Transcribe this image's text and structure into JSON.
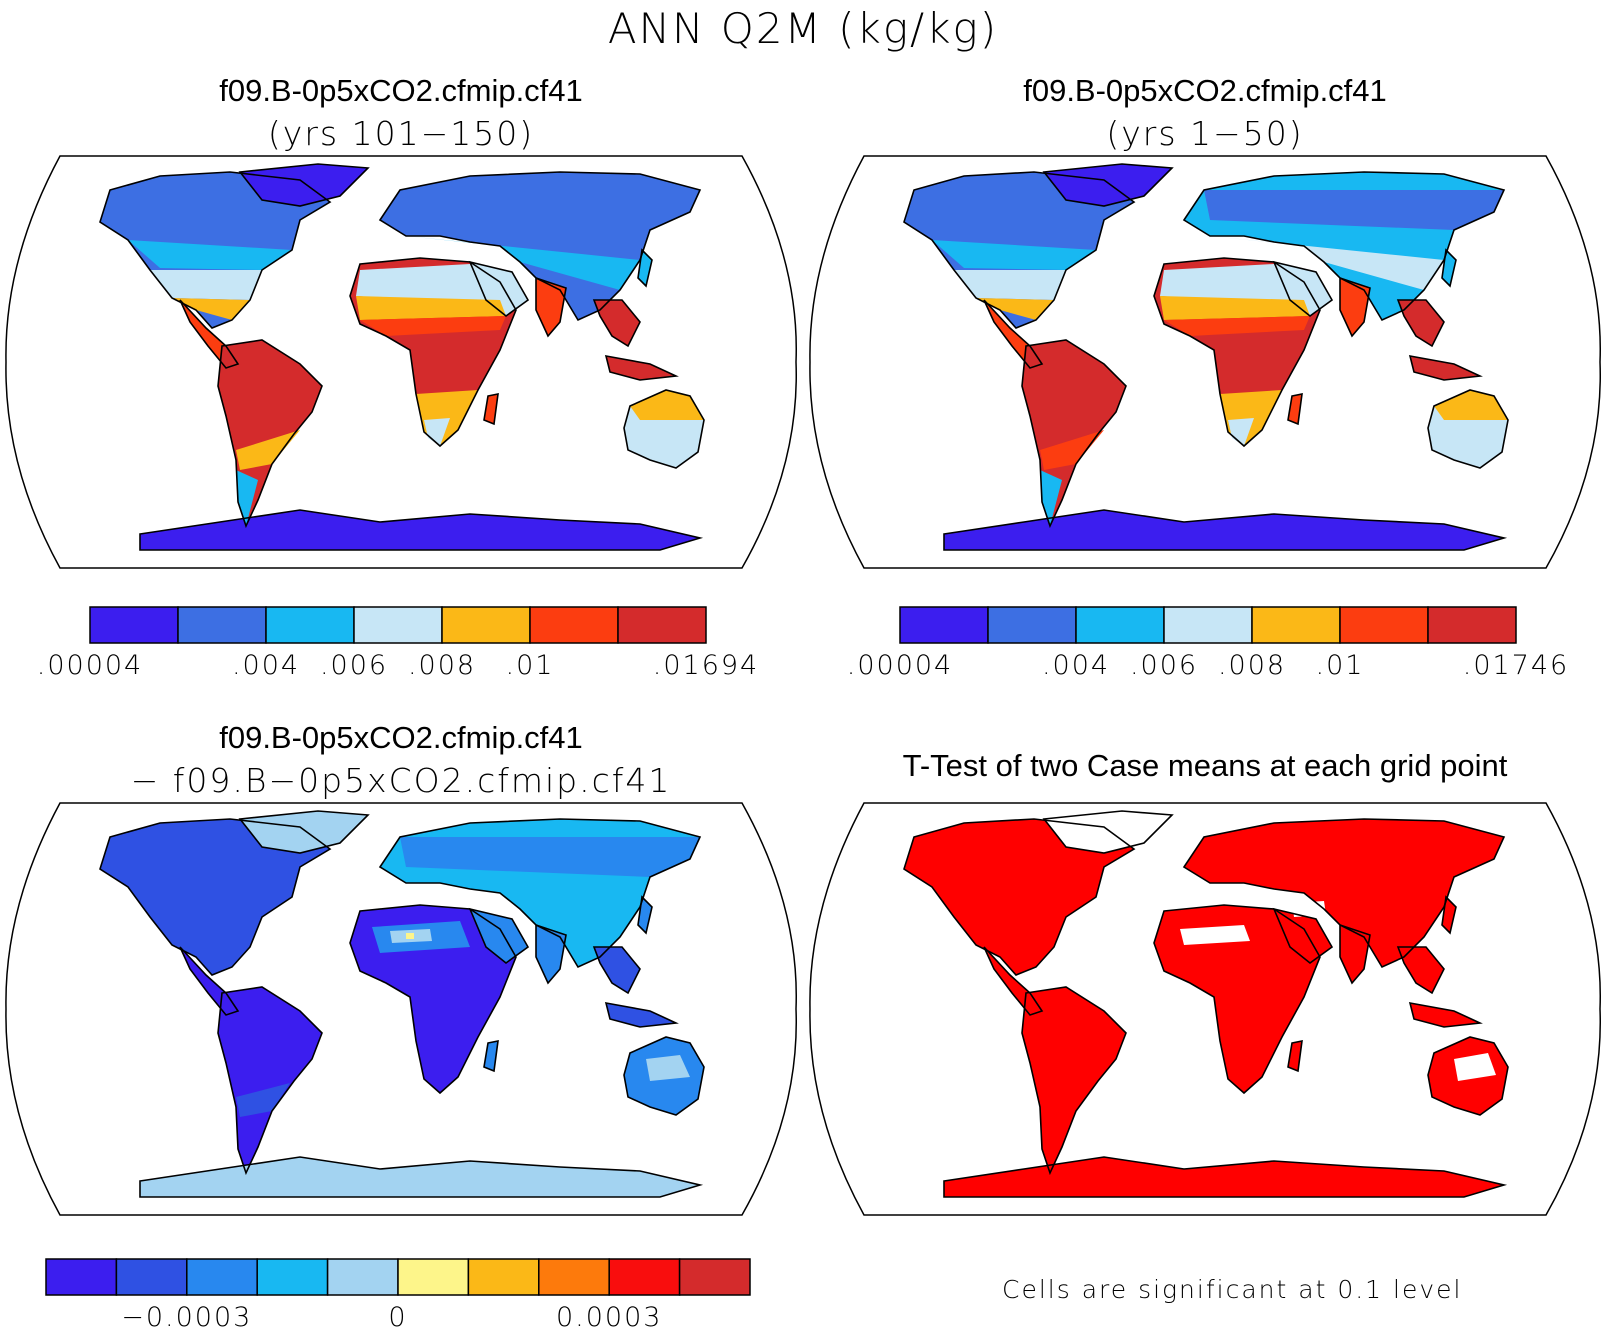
{
  "main_title": "ANN Q2M (kg/kg)",
  "panels": [
    {
      "title_line1": "f09.B-0p5xCO2.cfmip.cf41",
      "title_line2": "(yrs 101−150)",
      "colorbar": {
        "colors": [
          "#3c1eef",
          "#3d6fe3",
          "#18b8f2",
          "#c7e6f6",
          "#fbb817",
          "#fc3d10",
          "#d42b2c"
        ],
        "labels": [
          ".00004",
          ".004",
          ".006",
          ".008",
          ".01",
          ".01694"
        ],
        "label_boundaries": [
          0,
          2,
          3,
          4,
          5,
          7
        ]
      }
    },
    {
      "title_line1": "f09.B-0p5xCO2.cfmip.cf41",
      "title_line2": "(yrs 1−50)",
      "colorbar": {
        "colors": [
          "#3c1eef",
          "#3d6fe3",
          "#18b8f2",
          "#c7e6f6",
          "#fbb817",
          "#fc3d10",
          "#d42b2c"
        ],
        "labels": [
          ".00004",
          ".004",
          ".006",
          ".008",
          ".01",
          ".01746"
        ],
        "label_boundaries": [
          0,
          2,
          3,
          4,
          5,
          7
        ]
      }
    },
    {
      "title_line1": "f09.B-0p5xCO2.cfmip.cf41",
      "title_line2": "− f09.B−0p5xCO2.cfmip.cf41",
      "colorbar": {
        "colors": [
          "#3c1eef",
          "#2f51e3",
          "#2888ef",
          "#18b8f2",
          "#a3d3f1",
          "#fdf58a",
          "#fbb817",
          "#fd7a0c",
          "#f90d0d",
          "#d42b2c"
        ],
        "labels": [
          "−0.0003",
          "0",
          "0.0003"
        ],
        "label_positions": [
          2,
          5,
          8
        ]
      }
    },
    {
      "title_line1": "T-Test of two Case means at each grid point",
      "note": "Cells are significant at 0.1 level"
    }
  ],
  "chart_data": [
    {
      "type": "heatmap",
      "title": "f09.B-0p5xCO2.cfmip.cf41 (yrs 101−150)",
      "variable": "ANN Q2M (kg/kg)",
      "projection": "Robinson world map, land-only contour fill",
      "levels": [
        4e-05,
        0.004,
        0.006,
        0.008,
        0.01,
        0.01694
      ],
      "colors": [
        "#3c1eef",
        "#3d6fe3",
        "#18b8f2",
        "#c7e6f6",
        "#fbb817",
        "#fc3d10",
        "#d42b2c"
      ],
      "regions": [
        {
          "region": "Antarctica",
          "bin": 0
        },
        {
          "region": "Greenland",
          "bin": 0
        },
        {
          "region": "Northern Canada / Siberia",
          "bin": 1
        },
        {
          "region": "Europe / Central Asia",
          "bin": 1
        },
        {
          "region": "Sahara / Arabia",
          "bin": 3
        },
        {
          "region": "Amazon",
          "bin": 6
        },
        {
          "region": "Central Africa",
          "bin": 6
        },
        {
          "region": "Southeast Asia / Maritime Continent",
          "bin": 6
        },
        {
          "region": "Northern Australia",
          "bin": 4
        },
        {
          "region": "Southern Australia",
          "bin": 3
        }
      ]
    },
    {
      "type": "heatmap",
      "title": "f09.B-0p5xCO2.cfmip.cf41 (yrs 1−50)",
      "variable": "ANN Q2M (kg/kg)",
      "projection": "Robinson world map, land-only contour fill",
      "levels": [
        4e-05,
        0.004,
        0.006,
        0.008,
        0.01,
        0.01746
      ],
      "colors": [
        "#3c1eef",
        "#3d6fe3",
        "#18b8f2",
        "#c7e6f6",
        "#fbb817",
        "#fc3d10",
        "#d42b2c"
      ],
      "regions": [
        {
          "region": "Antarctica",
          "bin": 0
        },
        {
          "region": "Greenland",
          "bin": 0
        },
        {
          "region": "Northern Canada / Siberia",
          "bin": 1
        },
        {
          "region": "Europe / Central Asia",
          "bin": 2
        },
        {
          "region": "Sahara / Arabia",
          "bin": 3
        },
        {
          "region": "Amazon",
          "bin": 6
        },
        {
          "region": "Central Africa",
          "bin": 6
        },
        {
          "region": "Southeast Asia / Maritime Continent",
          "bin": 6
        },
        {
          "region": "Northern Australia",
          "bin": 4
        },
        {
          "region": "Southern Australia",
          "bin": 3
        }
      ]
    },
    {
      "type": "heatmap",
      "title": "f09.B-0p5xCO2.cfmip.cf41 − f09.B−0p5xCO2.cfmip.cf41",
      "variable": "ANN Q2M (kg/kg) difference",
      "projection": "Robinson world map, land-only contour fill",
      "colorbar_ticks": [
        -0.0003,
        0,
        0.0003
      ],
      "colors": [
        "#3c1eef",
        "#2f51e3",
        "#2888ef",
        "#18b8f2",
        "#a3d3f1",
        "#fdf58a",
        "#fbb817",
        "#fd7a0c",
        "#f90d0d",
        "#d42b2c"
      ],
      "regions": [
        {
          "region": "Antarctica",
          "bin": 4
        },
        {
          "region": "Greenland",
          "bin": 4
        },
        {
          "region": "North America",
          "bin": 1
        },
        {
          "region": "Eurasia high latitudes",
          "bin": 3
        },
        {
          "region": "Sahara",
          "bin": 4
        },
        {
          "region": "South America",
          "bin": 0
        },
        {
          "region": "Central Africa",
          "bin": 0
        },
        {
          "region": "Australia",
          "bin": 2
        }
      ]
    },
    {
      "type": "heatmap",
      "title": "T-Test of two Case means at each grid point",
      "projection": "Robinson world map, land-only significance mask",
      "significant_color": "#ff0000",
      "significance_level": 0.1,
      "not_significant_regions": [
        "Sahara patches",
        "Arabia / Central Asia patches",
        "Central Australia"
      ]
    }
  ]
}
